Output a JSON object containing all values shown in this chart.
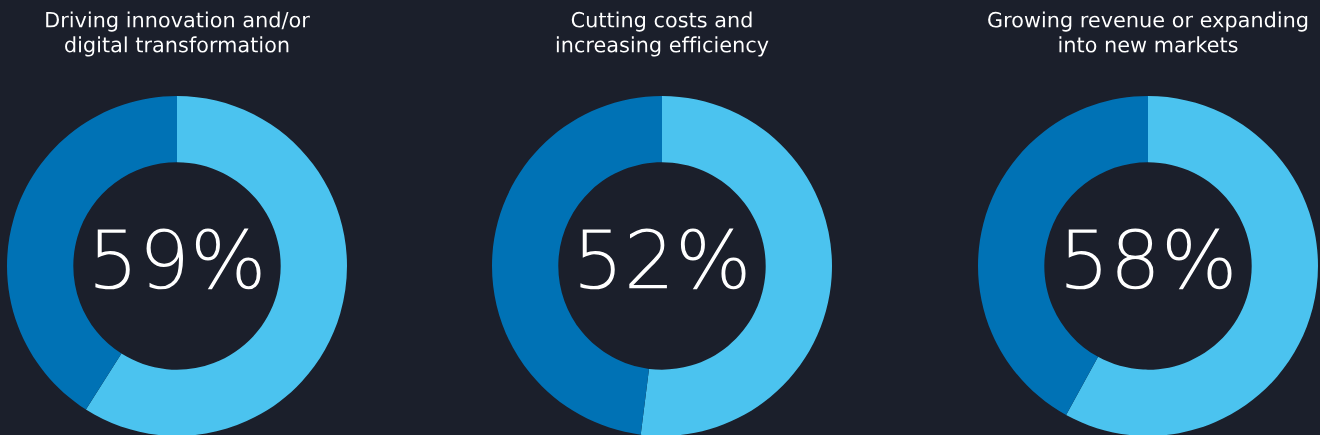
{
  "chart_data": [
    {
      "type": "donut",
      "title": "Driving innovation and/or\ndigital transformation",
      "categories": [
        null,
        null
      ],
      "values": [
        59,
        41
      ],
      "colors": [
        "#4bc3ef",
        "#0072b5"
      ],
      "value_labels": [
        "59%",
        null
      ]
    },
    {
      "type": "donut",
      "title": "Cutting costs and\nincreasing efficiency",
      "categories": [
        null,
        null
      ],
      "values": [
        52,
        48
      ],
      "colors": [
        "#4bc3ef",
        "#0072b5"
      ],
      "value_labels": [
        "52%",
        null
      ]
    },
    {
      "type": "donut",
      "title": "Growing revenue or expanding\ninto new markets",
      "categories": [
        null,
        null
      ],
      "values": [
        58,
        42
      ],
      "colors": [
        "#4bc3ef",
        "#0072b5"
      ],
      "value_labels": [
        "58%",
        null
      ]
    }
  ]
}
